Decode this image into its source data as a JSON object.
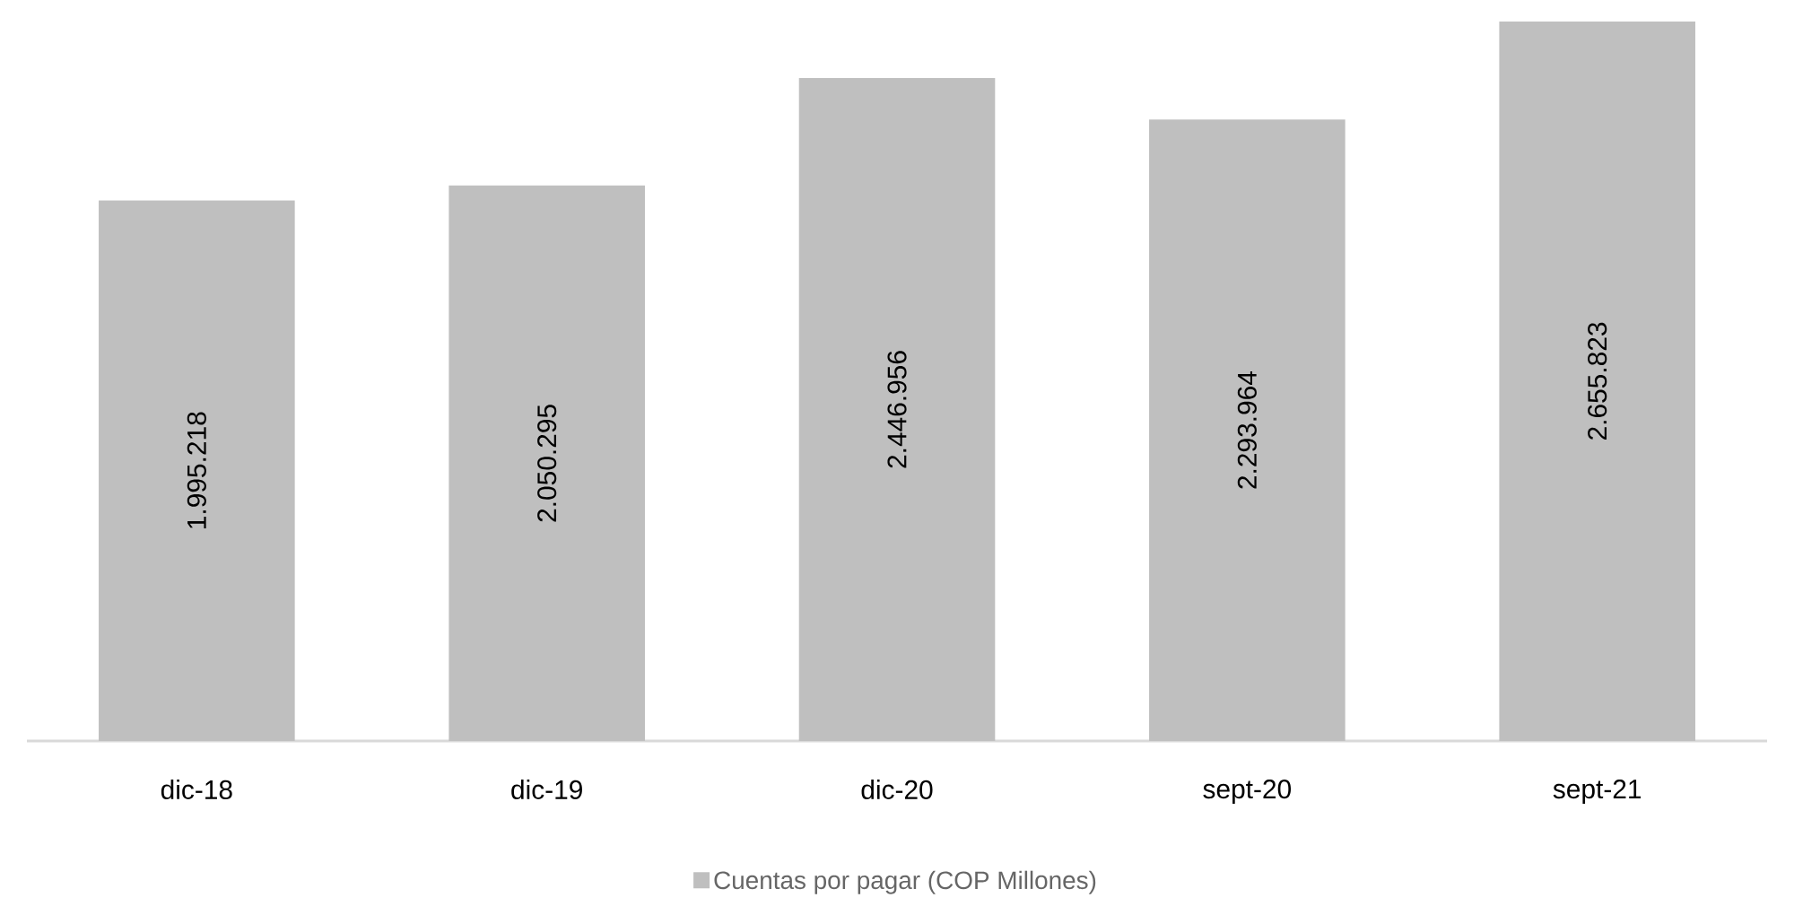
{
  "chart_data": {
    "type": "bar",
    "categories": [
      "dic-18",
      "dic-19",
      "dic-20",
      "sept-20",
      "sept-21"
    ],
    "series": [
      {
        "name": "Cuentas por pagar (COP Millones)",
        "color": "#bfbfbf",
        "values": [
          1995218,
          2050295,
          2446956,
          2293964,
          2655823
        ],
        "value_labels": [
          "1.995.218",
          "2.050.295",
          "2.446.956",
          "2.293.964",
          "2.655.823"
        ]
      }
    ],
    "legend": "bottom"
  }
}
